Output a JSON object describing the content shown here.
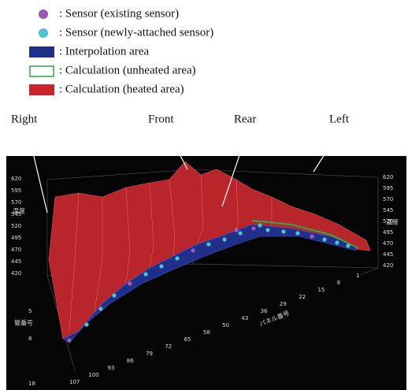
{
  "legend": [
    ": Sensor (existing sensor)",
    ": Sensor (newly-attached sensor)",
    ": Interpolation area",
    ": Calculation (unheated area)",
    ": Calculation (heated area)"
  ],
  "annotations": [
    "Right",
    "Front",
    "Rear",
    "Left"
  ],
  "plot": {
    "temperature_ticks_left": [
      620,
      595,
      570,
      545,
      520,
      495,
      470,
      445,
      420
    ],
    "temperature_ticks_right": [
      620,
      595,
      570,
      545,
      520,
      495,
      470,
      445,
      420
    ],
    "temperature_label": "温度",
    "panel_ticks": [
      107,
      100,
      93,
      86,
      79,
      72,
      65,
      58,
      50,
      43,
      36,
      29,
      22,
      15,
      8,
      1
    ],
    "panel_label": "パネル番号",
    "tube_ticks": [
      5,
      8,
      18
    ],
    "tube_label": "管番号"
  }
}
